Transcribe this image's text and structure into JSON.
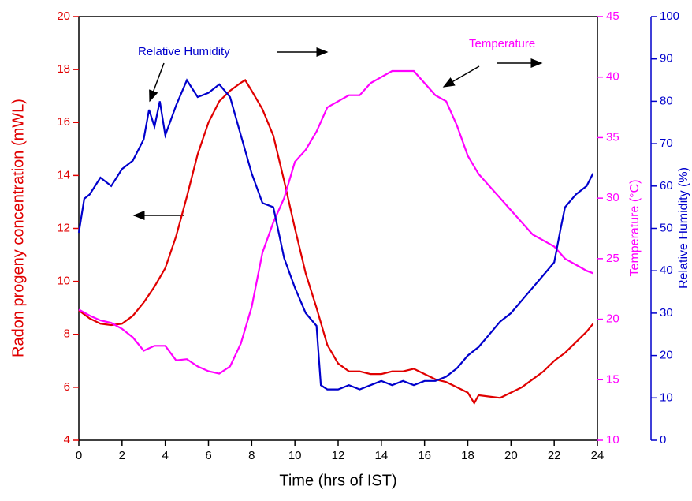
{
  "chart_data": {
    "type": "line",
    "xlabel": "Time (hrs of IST)",
    "ylabel": "Radon progeny concentration (mWL)",
    "y2label": "Temperature (°C)",
    "y3label": "Relative Humidity (%)",
    "annotations": [
      "Relative Humidity",
      "Temperature"
    ],
    "xlim": [
      0,
      24
    ],
    "xticks": [
      0,
      2,
      4,
      6,
      8,
      10,
      12,
      14,
      16,
      18,
      20,
      22,
      24
    ],
    "ylim": [
      4,
      20
    ],
    "yticks": [
      4,
      6,
      8,
      10,
      12,
      14,
      16,
      18,
      20
    ],
    "ycolor": "#e00000",
    "y2lim": [
      10,
      45
    ],
    "y2ticks": [
      10,
      15,
      20,
      25,
      30,
      35,
      40,
      45
    ],
    "y2color": "#ff00ff",
    "y3lim": [
      0,
      100
    ],
    "y3ticks": [
      0,
      10,
      20,
      30,
      40,
      50,
      60,
      70,
      80,
      90,
      100
    ],
    "y3color": "#0000cc",
    "series": [
      {
        "name": "Radon progeny",
        "color": "#e00000",
        "axis": "y",
        "x": [
          0,
          0.5,
          1,
          1.5,
          2,
          2.5,
          3,
          3.5,
          4,
          4.5,
          5,
          5.5,
          6,
          6.5,
          7,
          7.5,
          7.7,
          8,
          8.5,
          9,
          9.5,
          10,
          10.5,
          11,
          11.5,
          12,
          12.5,
          13,
          13.5,
          14,
          14.5,
          15,
          15.5,
          16,
          16.5,
          17,
          17.5,
          18,
          18.3,
          18.5,
          19,
          19.5,
          20,
          20.5,
          21,
          21.5,
          22,
          22.5,
          23,
          23.5,
          23.8
        ],
        "values": [
          8.9,
          8.6,
          8.4,
          8.35,
          8.4,
          8.7,
          9.2,
          9.8,
          10.5,
          11.7,
          13.2,
          14.8,
          16.0,
          16.8,
          17.2,
          17.5,
          17.6,
          17.2,
          16.5,
          15.5,
          13.8,
          12.0,
          10.3,
          9.0,
          7.6,
          6.9,
          6.6,
          6.6,
          6.5,
          6.5,
          6.6,
          6.6,
          6.7,
          6.5,
          6.3,
          6.2,
          6.0,
          5.8,
          5.4,
          5.7,
          5.65,
          5.6,
          5.8,
          6.0,
          6.3,
          6.6,
          7.0,
          7.3,
          7.7,
          8.1,
          8.4
        ]
      },
      {
        "name": "Temperature",
        "color": "#ff00ff",
        "axis": "y2",
        "x": [
          0,
          0.5,
          1,
          1.5,
          2,
          2.5,
          3,
          3.5,
          4,
          4.5,
          5,
          5.5,
          6,
          6.5,
          7,
          7.5,
          8,
          8.5,
          9,
          9.5,
          10,
          10.5,
          11,
          11.5,
          12,
          12.5,
          13,
          13.5,
          14,
          14.5,
          15,
          15.5,
          16,
          16.5,
          17,
          17.5,
          18,
          18.5,
          19,
          19.5,
          20,
          20.5,
          21,
          21.5,
          22,
          22.5,
          23,
          23.5,
          23.8
        ],
        "values": [
          20.8,
          20.3,
          19.9,
          19.7,
          19.2,
          18.5,
          17.4,
          17.8,
          17.8,
          16.6,
          16.7,
          16.1,
          15.7,
          15.5,
          16.1,
          18.0,
          21.0,
          25.5,
          28.0,
          30.0,
          33.0,
          34.0,
          35.5,
          37.5,
          38.0,
          38.5,
          38.5,
          39.5,
          40.0,
          40.5,
          40.5,
          40.5,
          39.5,
          38.5,
          38.0,
          36.0,
          33.5,
          32.0,
          31.0,
          30.0,
          29.0,
          28.0,
          27.0,
          26.5,
          26.0,
          25.0,
          24.5,
          24.0,
          23.8
        ]
      },
      {
        "name": "Relative Humidity",
        "color": "#0000cc",
        "axis": "y3",
        "x": [
          0,
          0.25,
          0.5,
          1,
          1.5,
          2,
          2.5,
          3,
          3.25,
          3.5,
          3.75,
          4,
          4.5,
          5,
          5.5,
          6,
          6.5,
          7,
          7.5,
          8,
          8.5,
          9,
          9.5,
          10,
          10.5,
          11,
          11.2,
          11.5,
          12,
          12.5,
          13,
          13.5,
          14,
          14.5,
          15,
          15.5,
          16,
          16.5,
          17,
          17.5,
          18,
          18.5,
          19,
          19.5,
          20,
          20.5,
          21,
          21.5,
          22,
          22.3,
          22.5,
          23,
          23.5,
          23.8
        ],
        "values": [
          49,
          57,
          58,
          62,
          60,
          64,
          66,
          71,
          78,
          74,
          80,
          72,
          79,
          85,
          81,
          82,
          84,
          81,
          72,
          63,
          56,
          55,
          43,
          36,
          30,
          27,
          13,
          12,
          12,
          13,
          12,
          13,
          14,
          13,
          14,
          13,
          14,
          14,
          15,
          17,
          20,
          22,
          25,
          28,
          30,
          33,
          36,
          39,
          42,
          50,
          55,
          58,
          60,
          63
        ]
      }
    ]
  }
}
